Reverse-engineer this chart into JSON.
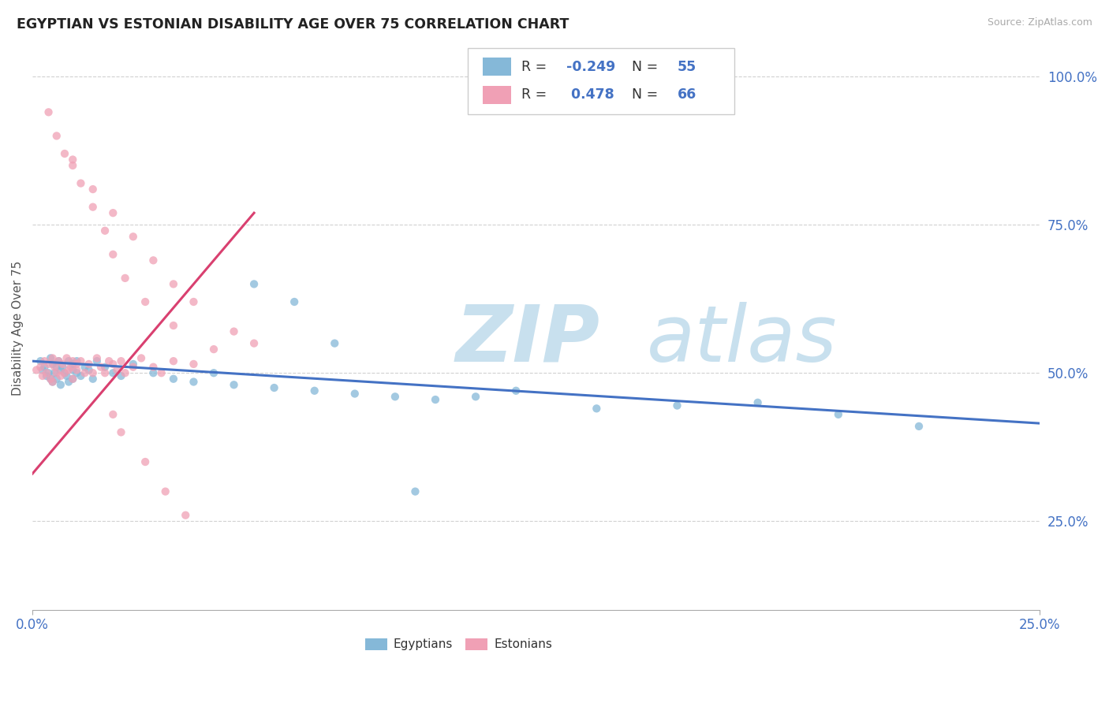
{
  "title": "EGYPTIAN VS ESTONIAN DISABILITY AGE OVER 75 CORRELATION CHART",
  "source": "Source: ZipAtlas.com",
  "ylabel_text": "Disability Age Over 75",
  "xlim": [
    0.0,
    25.0
  ],
  "ylim": [
    10.0,
    105.0
  ],
  "egyptians_color": "#85B8D8",
  "estonians_color": "#F0A0B5",
  "egyptians_line_color": "#4472C4",
  "estonians_line_color": "#D94070",
  "background_color": "#FFFFFF",
  "grid_color": "#CCCCCC",
  "watermark_color": "#C8E0EE",
  "egyptians_x": [
    0.2,
    0.25,
    0.3,
    0.35,
    0.4,
    0.45,
    0.45,
    0.5,
    0.5,
    0.55,
    0.6,
    0.6,
    0.65,
    0.7,
    0.7,
    0.75,
    0.8,
    0.85,
    0.9,
    0.9,
    1.0,
    1.0,
    1.0,
    1.1,
    1.1,
    1.2,
    1.3,
    1.4,
    1.5,
    1.6,
    1.8,
    2.0,
    2.2,
    2.5,
    3.0,
    3.5,
    4.0,
    4.5,
    5.0,
    6.0,
    7.0,
    8.0,
    9.0,
    10.0,
    11.0,
    12.0,
    14.0,
    16.0,
    18.0,
    20.0,
    22.0,
    5.5,
    6.5,
    7.5,
    9.5
  ],
  "egyptians_y": [
    52.0,
    50.5,
    51.0,
    49.5,
    50.0,
    52.5,
    49.0,
    51.5,
    48.5,
    50.0,
    51.0,
    49.0,
    52.0,
    50.5,
    48.0,
    51.0,
    50.0,
    49.5,
    52.0,
    48.5,
    50.5,
    49.0,
    51.5,
    50.0,
    52.0,
    49.5,
    51.0,
    50.5,
    49.0,
    52.0,
    51.0,
    50.0,
    49.5,
    51.5,
    50.0,
    49.0,
    48.5,
    50.0,
    48.0,
    47.5,
    47.0,
    46.5,
    46.0,
    45.5,
    46.0,
    47.0,
    44.0,
    44.5,
    45.0,
    43.0,
    41.0,
    65.0,
    62.0,
    55.0,
    30.0
  ],
  "estonians_x": [
    0.1,
    0.2,
    0.25,
    0.3,
    0.35,
    0.4,
    0.45,
    0.5,
    0.5,
    0.55,
    0.6,
    0.65,
    0.7,
    0.75,
    0.8,
    0.85,
    0.9,
    0.95,
    1.0,
    1.0,
    1.1,
    1.1,
    1.2,
    1.3,
    1.4,
    1.5,
    1.6,
    1.7,
    1.8,
    1.9,
    2.0,
    2.1,
    2.2,
    2.3,
    2.5,
    2.7,
    3.0,
    3.2,
    3.5,
    4.0,
    1.0,
    1.2,
    1.5,
    1.8,
    2.0,
    2.3,
    2.8,
    3.5,
    4.5,
    0.4,
    0.6,
    0.8,
    1.0,
    1.5,
    2.0,
    2.5,
    3.0,
    3.5,
    4.0,
    5.0,
    5.5,
    2.0,
    2.2,
    2.8,
    3.3,
    3.8
  ],
  "estonians_y": [
    50.5,
    51.0,
    49.5,
    52.0,
    50.0,
    51.5,
    49.0,
    52.5,
    48.5,
    51.0,
    50.0,
    52.0,
    49.5,
    51.5,
    50.0,
    52.5,
    50.5,
    51.0,
    52.0,
    49.0,
    51.5,
    50.5,
    52.0,
    50.0,
    51.5,
    50.0,
    52.5,
    51.0,
    50.0,
    52.0,
    51.5,
    50.5,
    52.0,
    50.0,
    51.0,
    52.5,
    51.0,
    50.0,
    52.0,
    51.5,
    86.0,
    82.0,
    78.0,
    74.0,
    70.0,
    66.0,
    62.0,
    58.0,
    54.0,
    94.0,
    90.0,
    87.0,
    85.0,
    81.0,
    77.0,
    73.0,
    69.0,
    65.0,
    62.0,
    57.0,
    55.0,
    43.0,
    40.0,
    35.0,
    30.0,
    26.0
  ]
}
